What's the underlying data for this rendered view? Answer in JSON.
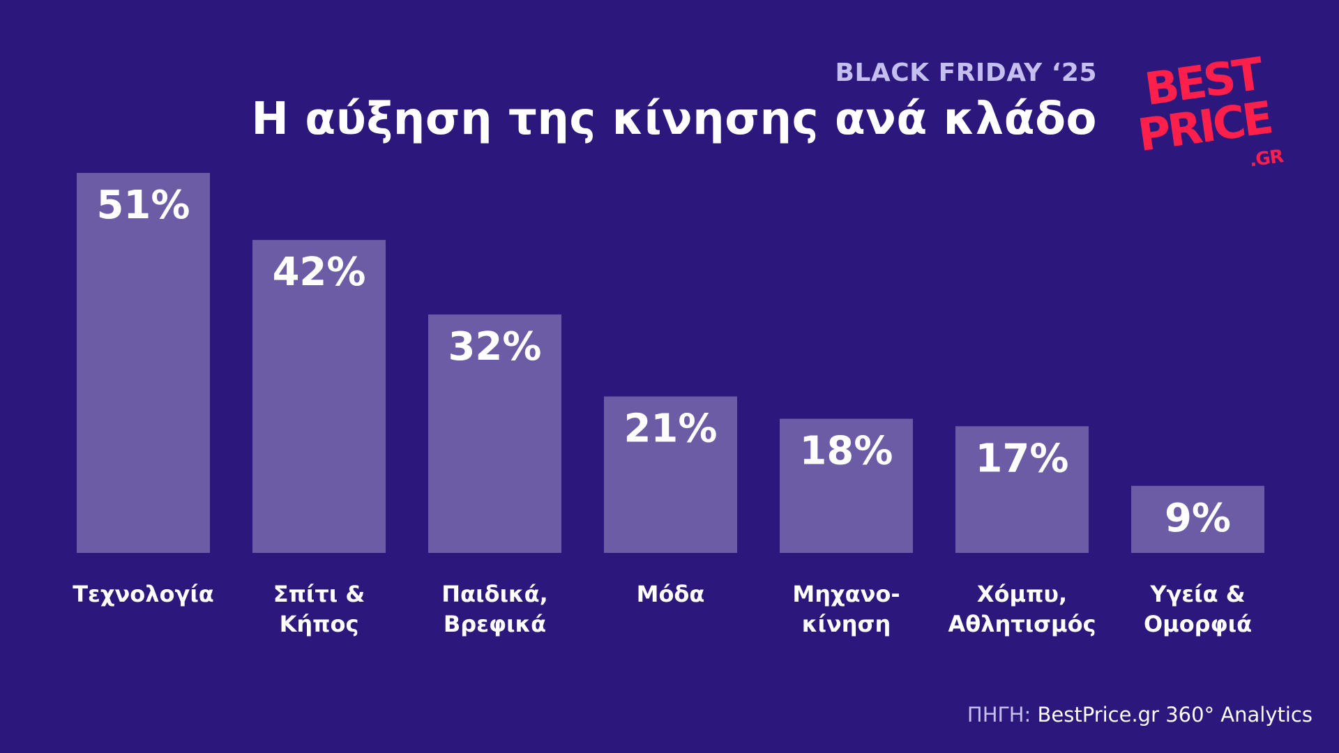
{
  "header": {
    "kicker": "BLACK FRIDAY ‘25",
    "title": "Η αύξηση της κίνησης ανά κλάδο"
  },
  "logo": {
    "line1": "BEST",
    "line2": "PRICE",
    "line3": ".GR",
    "color": "#ff1f4b"
  },
  "source": {
    "label": "ΠΗΓΗ:",
    "text": "BestPrice.gr 360° Analytics"
  },
  "colors": {
    "background": "#2c187c",
    "bar": "#6b5ca5",
    "text": "#ffffff",
    "muted": "#c5bff0"
  },
  "chart_data": {
    "type": "bar",
    "categories": [
      [
        "Τεχνολογία"
      ],
      [
        "Σπίτι &",
        "Κήπος"
      ],
      [
        "Παιδικά,",
        "Βρεφικά"
      ],
      [
        "Μόδα"
      ],
      [
        "Μηχανο-",
        "κίνηση"
      ],
      [
        "Χόμπυ,",
        "Αθλητισμός"
      ],
      [
        "Υγεία &",
        "Ομορφιά"
      ]
    ],
    "values": [
      51,
      42,
      32,
      21,
      18,
      17,
      9
    ],
    "value_labels": [
      "51%",
      "42%",
      "32%",
      "21%",
      "18%",
      "17%",
      "9%"
    ],
    "unit": "%",
    "ylim": [
      0,
      51
    ],
    "grid": false,
    "legend": "none"
  }
}
